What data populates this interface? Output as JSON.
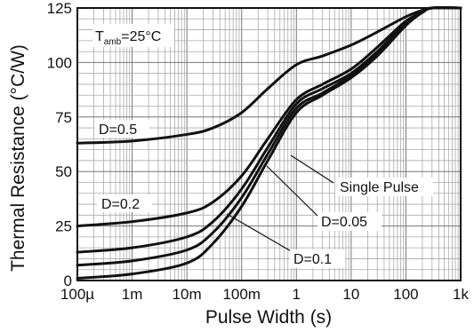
{
  "chart_data": {
    "type": "line",
    "xlabel": "Pulse Width (s)",
    "ylabel": "Thermal Resistance (°C/W)",
    "x_scale": "log",
    "xlim": [
      0.0001,
      1000
    ],
    "ylim": [
      0,
      125
    ],
    "grid": true,
    "x_ticks": [
      {
        "value": 0.0001,
        "label": "100µ"
      },
      {
        "value": 0.001,
        "label": "1m"
      },
      {
        "value": 0.01,
        "label": "10m"
      },
      {
        "value": 0.1,
        "label": "100m"
      },
      {
        "value": 1,
        "label": "1"
      },
      {
        "value": 10,
        "label": "10"
      },
      {
        "value": 100,
        "label": "100"
      },
      {
        "value": 1000,
        "label": "1k"
      }
    ],
    "y_ticks": [
      {
        "value": 0,
        "label": "0"
      },
      {
        "value": 25,
        "label": "25"
      },
      {
        "value": 50,
        "label": "50"
      },
      {
        "value": 75,
        "label": "75"
      },
      {
        "value": 100,
        "label": "100"
      },
      {
        "value": 125,
        "label": "125"
      }
    ],
    "ambient_label": {
      "main": "T",
      "sub": "amb",
      "rest": "=25°C"
    },
    "series": [
      {
        "name": "D=0.5",
        "x": [
          0.0001,
          0.001,
          0.01,
          0.03,
          0.1,
          0.3,
          1,
          3,
          10,
          30,
          100,
          200,
          300,
          1000
        ],
        "y": [
          63,
          64,
          67,
          70,
          77,
          88,
          99,
          103,
          108,
          114,
          121,
          124,
          125,
          125
        ]
      },
      {
        "name": "D=0.2",
        "x": [
          0.0001,
          0.001,
          0.01,
          0.03,
          0.1,
          0.3,
          1,
          3,
          10,
          30,
          100,
          200,
          300,
          1000
        ],
        "y": [
          25,
          27,
          31,
          36,
          48,
          65,
          83,
          90,
          97,
          107,
          119,
          123,
          125,
          125
        ]
      },
      {
        "name": "D=0.1",
        "x": [
          0.0001,
          0.001,
          0.01,
          0.03,
          0.1,
          0.3,
          1,
          3,
          10,
          30,
          100,
          200,
          300,
          1000
        ],
        "y": [
          13,
          15,
          20,
          27,
          42,
          61,
          81,
          88,
          95,
          105,
          118,
          123,
          125,
          125
        ]
      },
      {
        "name": "D=0.05",
        "x": [
          0.0001,
          0.001,
          0.01,
          0.03,
          0.1,
          0.3,
          1,
          3,
          10,
          30,
          100,
          200,
          300,
          1000
        ],
        "y": [
          7,
          9,
          14,
          22,
          38,
          58,
          79,
          86,
          94,
          104,
          118,
          123,
          125,
          125
        ]
      },
      {
        "name": "Single Pulse",
        "x": [
          0.0001,
          0.001,
          0.01,
          0.03,
          0.1,
          0.3,
          1,
          3,
          10,
          30,
          100,
          200,
          300,
          1000
        ],
        "y": [
          1,
          3,
          8,
          17,
          34,
          55,
          77,
          85,
          93,
          103,
          117,
          123,
          125,
          125
        ]
      }
    ],
    "annotations": [
      {
        "text": "D=0.5",
        "series": "D=0.5"
      },
      {
        "text": "D=0.2",
        "series": "D=0.2"
      },
      {
        "text": "Single Pulse",
        "series": "Single Pulse",
        "point": [
          1.6,
          78.5
        ]
      },
      {
        "text": "D=0.05",
        "series": "D=0.05",
        "point": [
          0.8,
          73
        ]
      },
      {
        "text": "D=0.1",
        "series": "D=0.1",
        "point": [
          0.25,
          62
        ]
      }
    ]
  }
}
